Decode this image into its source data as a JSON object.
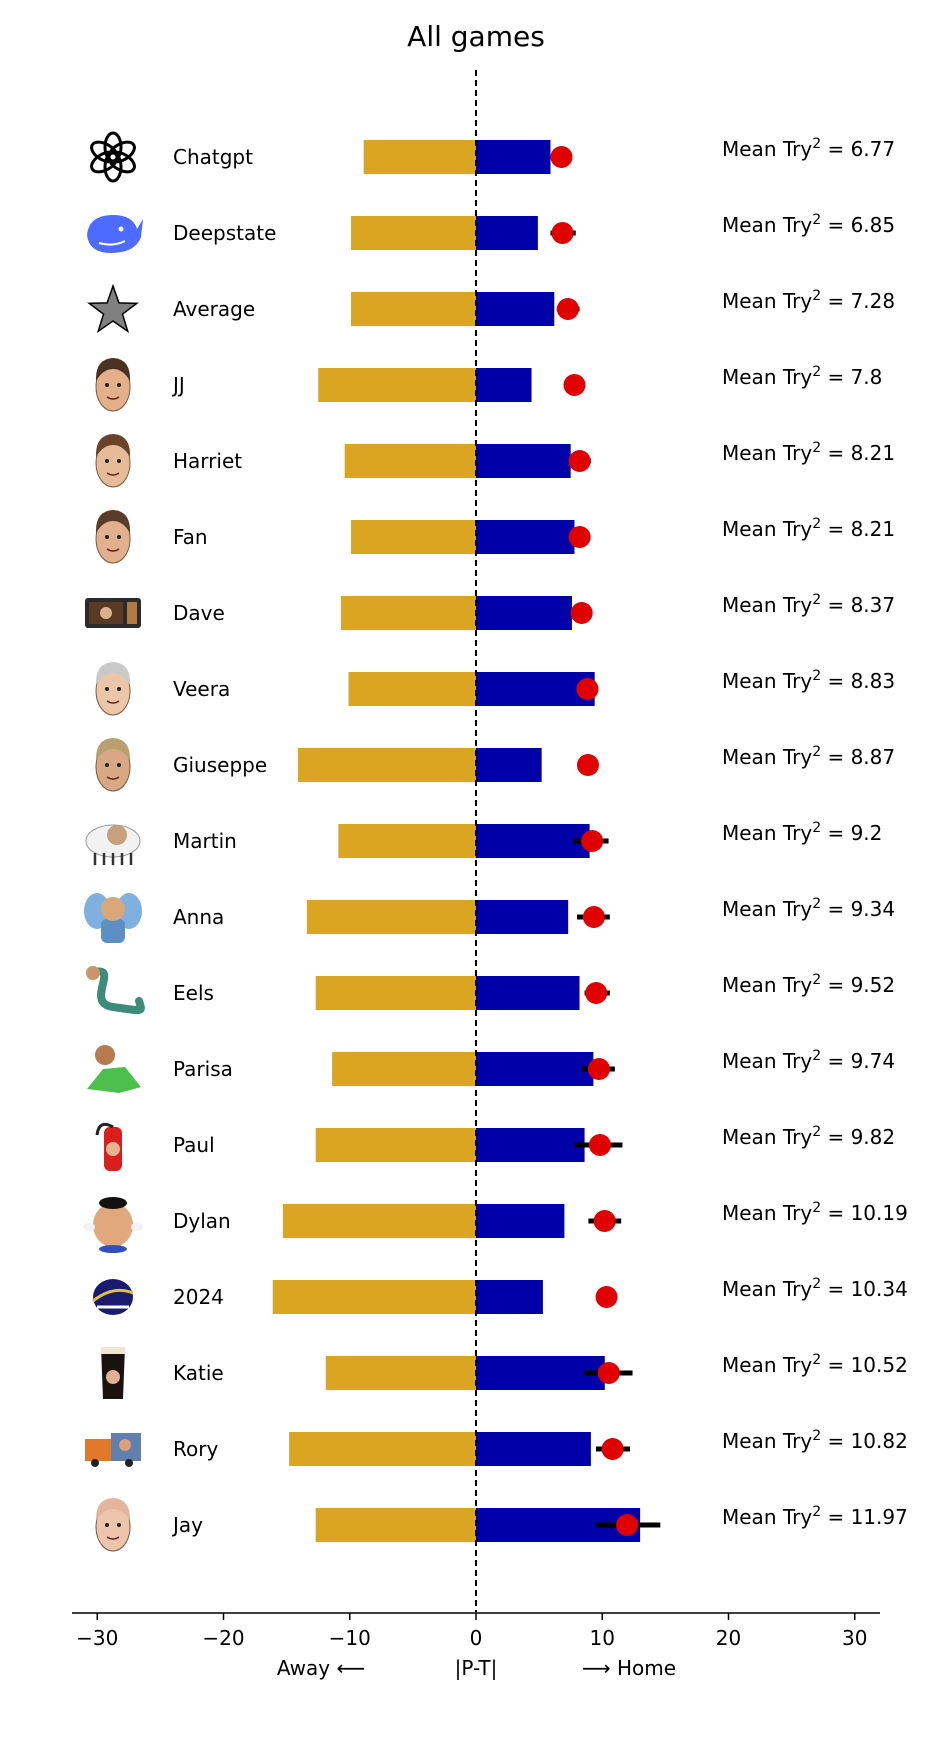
{
  "chart_data": {
    "type": "bar",
    "title": "All games",
    "xlabel_left": "Away ⟵",
    "xlabel_center": "|P-T|",
    "xlabel_right": "⟶ Home",
    "xlim": [
      -32,
      32
    ],
    "xticks": [
      -30,
      -20,
      -10,
      0,
      10,
      20,
      30
    ],
    "xtick_labels": [
      "−30",
      "−20",
      "−10",
      "0",
      "10",
      "20",
      "30"
    ],
    "annotation_prefix": "Mean Try",
    "annotation_superscript": "2",
    "annotation_separator": " = ",
    "colors": {
      "away": "#DAA520",
      "home": "#0000A8",
      "marker": "#E00000",
      "errorbar": "#000000",
      "zero_line": "#000000"
    },
    "categories": [
      "Chatgpt",
      "Deepstate",
      "Average",
      "JJ",
      "Harriet",
      "Fan",
      "Dave",
      "Veera",
      "Giuseppe",
      "Martin",
      "Anna",
      "Eels",
      "Parisa",
      "Paul",
      "Dylan",
      "2024",
      "Katie",
      "Rory",
      "Jay"
    ],
    "icons": [
      "openai-logo-icon",
      "whale-icon",
      "star-icon",
      "photo-jj-icon",
      "photo-harriet-icon",
      "photo-fan-icon",
      "microwave-icon",
      "photo-veera-icon",
      "photo-giuseppe-icon",
      "sheep-icon",
      "elephant-icon",
      "eel-icon",
      "dinosaur-icon",
      "fire-extinguisher-icon",
      "potato-head-icon",
      "2024-logo-icon",
      "pint-glass-icon",
      "truck-icon",
      "photo-jay-icon"
    ],
    "series": [
      {
        "name": "Away",
        "values": [
          -8.9,
          -9.9,
          -9.9,
          -12.5,
          -10.4,
          -9.9,
          -10.7,
          -10.1,
          -14.1,
          -10.9,
          -13.4,
          -12.7,
          -11.4,
          -12.7,
          -15.3,
          -16.1,
          -11.9,
          -14.8,
          -12.7
        ]
      },
      {
        "name": "Home",
        "values": [
          5.9,
          4.9,
          6.2,
          4.4,
          7.5,
          7.8,
          7.6,
          9.4,
          5.2,
          9.0,
          7.3,
          8.2,
          9.3,
          8.6,
          7.0,
          5.3,
          10.2,
          9.1,
          13.0
        ]
      },
      {
        "name": "Mean",
        "values": [
          6.77,
          6.85,
          7.28,
          7.8,
          8.21,
          8.21,
          8.37,
          8.83,
          8.87,
          9.2,
          9.34,
          9.52,
          9.74,
          9.82,
          10.19,
          10.34,
          10.52,
          10.82,
          11.97
        ]
      }
    ],
    "errorbars": [
      [
        6.2,
        6.9
      ],
      [
        5.9,
        7.9
      ],
      [
        6.4,
        8.2
      ],
      null,
      [
        7.6,
        9.1
      ],
      null,
      null,
      null,
      null,
      [
        7.7,
        10.5
      ],
      [
        8.0,
        10.6
      ],
      [
        8.6,
        10.6
      ],
      [
        8.4,
        11.0
      ],
      [
        7.8,
        11.6
      ],
      [
        8.9,
        11.5
      ],
      null,
      [
        8.6,
        12.4
      ],
      [
        9.5,
        12.2
      ],
      [
        9.5,
        14.6
      ]
    ],
    "annotations": [
      "6.77",
      "6.85",
      "7.28",
      "7.8",
      "8.21",
      "8.21",
      "8.37",
      "8.83",
      "8.87",
      "9.2",
      "9.34",
      "9.52",
      "9.74",
      "9.82",
      "10.19",
      "10.34",
      "10.52",
      "10.82",
      "11.97"
    ],
    "grid": false,
    "legend": "none"
  }
}
